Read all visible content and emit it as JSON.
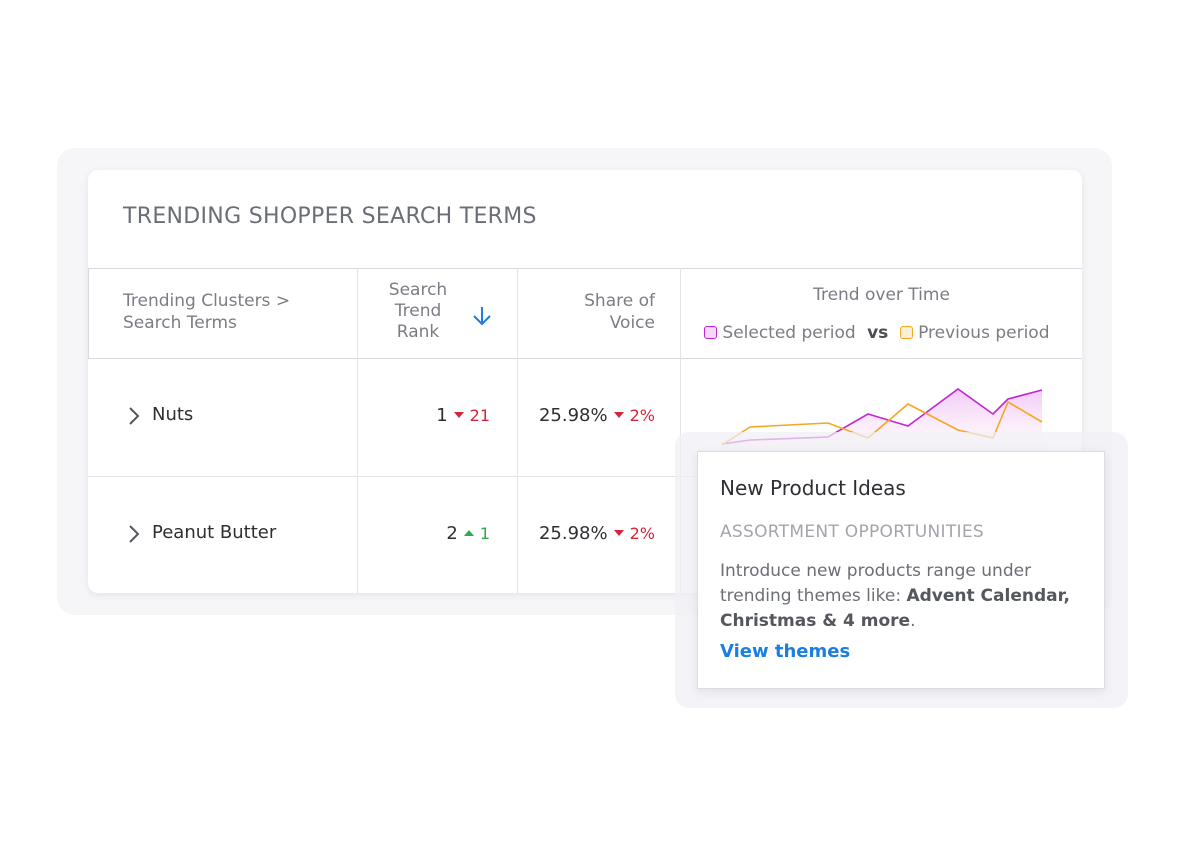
{
  "title": "TRENDING SHOPPER SEARCH TERMS",
  "table": {
    "headers": {
      "cluster": [
        "Trending Clusters >",
        "Search Terms"
      ],
      "rank": [
        "Search",
        "Trend",
        "Rank"
      ],
      "share": [
        "Share of",
        "Voice"
      ],
      "trend": "Trend over Time",
      "vs": "vs"
    },
    "rows": [
      {
        "term": "Nuts",
        "rank": 1,
        "rank_change": 21,
        "rank_direction": "down",
        "share": "25.98%",
        "share_change": "2%",
        "share_direction": "down"
      },
      {
        "term": "Peanut Butter",
        "rank": 2,
        "rank_change": 1,
        "rank_direction": "up",
        "share": "25.98%",
        "share_change": "2%",
        "share_direction": "down"
      }
    ]
  },
  "chart_data": {
    "type": "line",
    "x": [
      0,
      28,
      106,
      146,
      186,
      236,
      271,
      286,
      320
    ],
    "xlim": [
      0,
      320
    ],
    "ylim": [
      0,
      70
    ],
    "series": [
      {
        "name": "Selected period",
        "color": "#c026d3",
        "values": [
          6,
          10,
          13,
          36,
          24,
          61,
          36,
          51,
          60
        ]
      },
      {
        "name": "Previous period",
        "color": "#f5a623",
        "values": [
          5,
          23,
          27,
          12,
          46,
          20,
          12,
          48,
          28
        ]
      }
    ]
  },
  "popup": {
    "title": "New Product Ideas",
    "subtitle": "ASSORTMENT OPPORTUNITIES",
    "body": [
      "Introduce new products range under trending themes like:",
      "Advent Calendar, Christmas & 4 more",
      "."
    ],
    "link": "View themes"
  }
}
